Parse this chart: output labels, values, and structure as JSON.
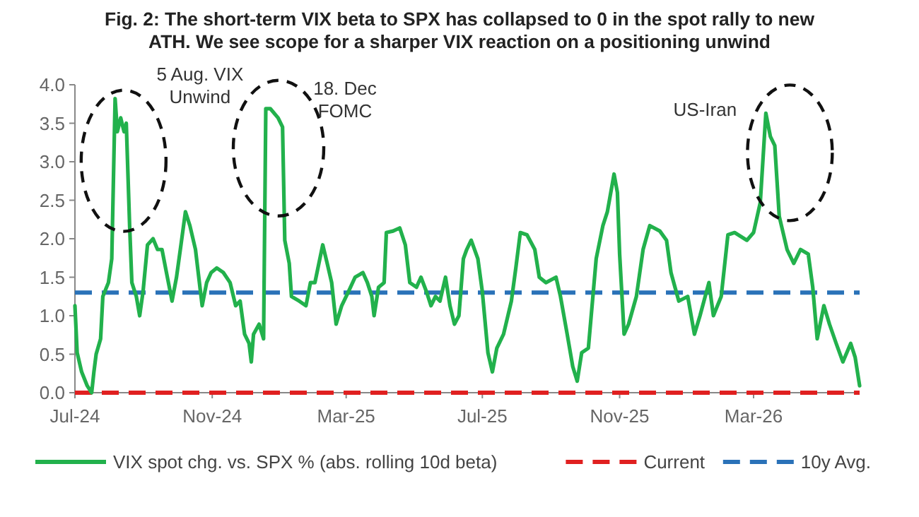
{
  "chart_data": {
    "type": "line",
    "title": "Fig. 2: The short-term VIX beta to SPX has collapsed to 0 in the spot rally to new\nATH. We see scope for a sharper VIX reaction on a positioning unwind",
    "xlim": [
      "2024-07-01",
      "2026-06-04"
    ],
    "xticks": [
      {
        "value": "2024-07-01",
        "label": "Jul-24"
      },
      {
        "value": "2024-11-01",
        "label": "Nov-24"
      },
      {
        "value": "2025-03-01",
        "label": "Mar-25"
      },
      {
        "value": "2025-07-01",
        "label": "Jul-25"
      },
      {
        "value": "2025-11-01",
        "label": "Nov-25"
      },
      {
        "value": "2026-03-01",
        "label": "Mar-26"
      }
    ],
    "ylim": [
      0,
      4
    ],
    "yticks": [
      {
        "value": 0,
        "label": "0.0"
      },
      {
        "value": 0.5,
        "label": "0.5"
      },
      {
        "value": 1,
        "label": "1.0"
      },
      {
        "value": 1.5,
        "label": "1.5"
      },
      {
        "value": 2,
        "label": "2.0"
      },
      {
        "value": 2.5,
        "label": "2.5"
      },
      {
        "value": 3,
        "label": "3.0"
      },
      {
        "value": 3.5,
        "label": "3.5"
      },
      {
        "value": 4,
        "label": "4.0"
      }
    ],
    "grid": false,
    "legend": "bottom",
    "line_style": "solid",
    "series": [
      {
        "name": "VIX spot chg. vs. SPX % (abs. rolling 10d beta)",
        "color": "#22b14c",
        "x": [
          "2024-07-01",
          "2024-07-03",
          "2024-07-07",
          "2024-07-12",
          "2024-07-16",
          "2024-07-18",
          "2024-07-20",
          "2024-07-24",
          "2024-07-26",
          "2024-07-31",
          "2024-08-03",
          "2024-08-06",
          "2024-08-08",
          "2024-08-11",
          "2024-08-14",
          "2024-08-16",
          "2024-08-19",
          "2024-08-21",
          "2024-08-25",
          "2024-08-28",
          "2024-08-31",
          "2024-09-04",
          "2024-09-09",
          "2024-09-13",
          "2024-09-17",
          "2024-09-21",
          "2024-09-26",
          "2024-09-30",
          "2024-10-04",
          "2024-10-08",
          "2024-10-12",
          "2024-10-17",
          "2024-10-21",
          "2024-10-23",
          "2024-10-27",
          "2024-10-31",
          "2024-11-05",
          "2024-11-11",
          "2024-11-17",
          "2024-11-22",
          "2024-11-26",
          "2024-11-30",
          "2024-12-04",
          "2024-12-06",
          "2024-12-08",
          "2024-12-13",
          "2024-12-17",
          "2024-12-19",
          "2024-12-23",
          "2024-12-30",
          "2025-01-03",
          "2025-01-05",
          "2025-01-09",
          "2025-01-11",
          "2025-01-18",
          "2025-01-24",
          "2025-01-28",
          "2025-02-01",
          "2025-02-08",
          "2025-02-12",
          "2025-02-16",
          "2025-02-20",
          "2025-02-25",
          "2025-03-03",
          "2025-03-09",
          "2025-03-16",
          "2025-03-20",
          "2025-03-24",
          "2025-03-26",
          "2025-03-30",
          "2025-04-04",
          "2025-04-06",
          "2025-04-12",
          "2025-04-18",
          "2025-04-23",
          "2025-04-27",
          "2025-05-03",
          "2025-05-07",
          "2025-05-12",
          "2025-05-16",
          "2025-05-20",
          "2025-05-24",
          "2025-05-29",
          "2025-06-02",
          "2025-06-06",
          "2025-06-10",
          "2025-06-14",
          "2025-06-17",
          "2025-06-21",
          "2025-06-27",
          "2025-07-01",
          "2025-07-06",
          "2025-07-10",
          "2025-07-14",
          "2025-07-20",
          "2025-07-27",
          "2025-07-31",
          "2025-08-04",
          "2025-08-10",
          "2025-08-17",
          "2025-08-21",
          "2025-08-27",
          "2025-09-05",
          "2025-09-09",
          "2025-09-15",
          "2025-09-20",
          "2025-09-24",
          "2025-09-28",
          "2025-10-04",
          "2025-10-11",
          "2025-10-17",
          "2025-10-21",
          "2025-10-27",
          "2025-10-30",
          "2025-11-01",
          "2025-11-05",
          "2025-11-09",
          "2025-11-16",
          "2025-11-22",
          "2025-11-28",
          "2025-12-07",
          "2025-12-13",
          "2025-12-17",
          "2025-12-24",
          "2026-01-01",
          "2026-01-07",
          "2026-01-12",
          "2026-01-20",
          "2026-01-24",
          "2026-01-31",
          "2026-02-06",
          "2026-02-12",
          "2026-02-23",
          "2026-03-01",
          "2026-03-07",
          "2026-03-12",
          "2026-03-16",
          "2026-03-20",
          "2026-03-24",
          "2026-03-31",
          "2026-04-06",
          "2026-04-12",
          "2026-04-19",
          "2026-04-23",
          "2026-04-27",
          "2026-05-03",
          "2026-05-08",
          "2026-05-14",
          "2026-05-20",
          "2026-05-27",
          "2026-05-31",
          "2026-06-04"
        ],
        "values": [
          1.13,
          0.52,
          0.27,
          0.09,
          0.0,
          0.27,
          0.5,
          0.7,
          1.25,
          1.43,
          1.74,
          3.82,
          3.39,
          3.57,
          3.39,
          3.5,
          2.17,
          1.43,
          1.25,
          1.0,
          1.31,
          1.92,
          2.0,
          1.86,
          1.86,
          1.56,
          1.19,
          1.5,
          1.92,
          2.35,
          2.17,
          1.86,
          1.37,
          1.13,
          1.43,
          1.56,
          1.62,
          1.56,
          1.43,
          1.13,
          1.19,
          0.76,
          0.64,
          0.4,
          0.76,
          0.89,
          0.7,
          3.69,
          3.69,
          3.57,
          3.45,
          1.98,
          1.68,
          1.25,
          1.19,
          1.13,
          1.43,
          1.43,
          1.92,
          1.68,
          1.43,
          0.89,
          1.13,
          1.31,
          1.5,
          1.56,
          1.43,
          1.25,
          1.0,
          1.37,
          1.43,
          2.08,
          2.1,
          2.14,
          1.92,
          1.43,
          1.37,
          1.5,
          1.31,
          1.13,
          1.25,
          1.19,
          1.5,
          1.13,
          0.89,
          1.0,
          1.74,
          1.86,
          1.98,
          1.74,
          1.31,
          0.52,
          0.27,
          0.58,
          0.76,
          1.19,
          1.62,
          2.08,
          2.05,
          1.86,
          1.5,
          1.43,
          1.5,
          1.25,
          0.76,
          0.34,
          0.15,
          0.52,
          0.58,
          1.74,
          2.17,
          2.35,
          2.84,
          2.6,
          1.8,
          0.76,
          0.89,
          1.25,
          1.86,
          2.17,
          2.1,
          1.98,
          1.56,
          1.19,
          1.25,
          0.76,
          1.0,
          1.43,
          1.0,
          1.25,
          2.05,
          2.08,
          1.98,
          2.08,
          2.47,
          3.63,
          3.33,
          3.21,
          2.29,
          1.86,
          1.68,
          1.86,
          1.8,
          1.37,
          0.7,
          1.13,
          0.89,
          0.64,
          0.4,
          0.64,
          0.46,
          0.09
        ]
      }
    ],
    "ref_lines": [
      {
        "axis": "y",
        "value": 0,
        "label": "Current",
        "color": "#e02020",
        "line_style": "dashed"
      },
      {
        "axis": "y",
        "value": 1.3,
        "label": "10y Avg.",
        "color": "#2a72b8",
        "line_style": "dashed"
      }
    ],
    "annotations": [
      {
        "text": "5 Aug. VIX\nUnwind",
        "x": "2024-08-06",
        "y": 3.82
      },
      {
        "text": "18. Dec\nFOMC",
        "x": "2024-12-19",
        "y": 3.69
      },
      {
        "text": "US-Iran",
        "x": "2026-03-12",
        "y": 3.63
      }
    ]
  }
}
